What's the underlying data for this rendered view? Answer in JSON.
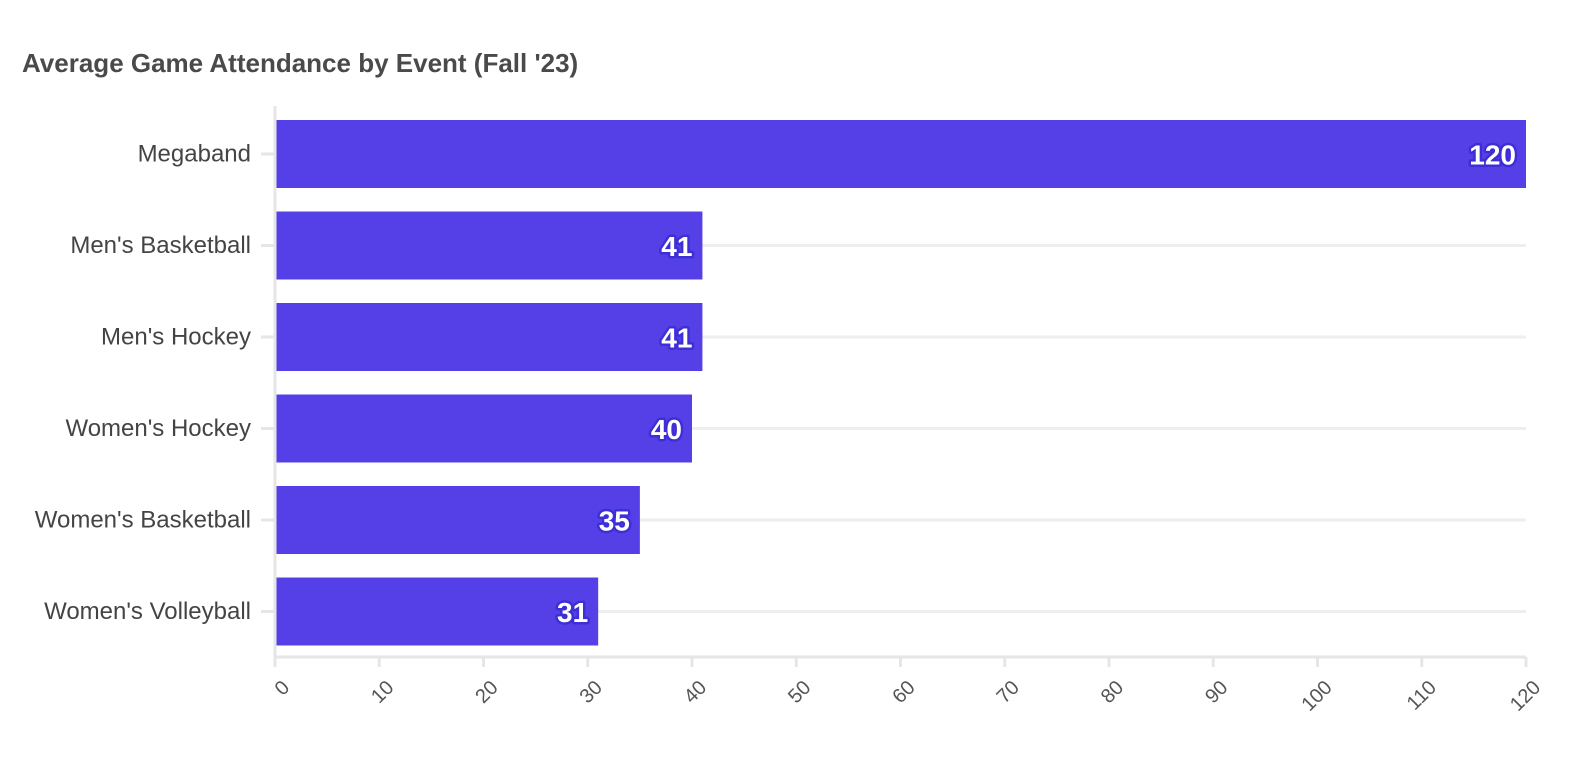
{
  "chart_data": {
    "type": "bar",
    "orientation": "horizontal",
    "title": "Average Game Attendance by Event (Fall '23)",
    "xlabel": "",
    "ylabel": "",
    "categories": [
      "Megaband",
      "Men's Basketball",
      "Men's Hockey",
      "Women's Hockey",
      "Women's Basketball",
      "Women's Volleyball"
    ],
    "values": [
      120,
      41,
      41,
      40,
      35,
      31
    ],
    "xlim": [
      0,
      120
    ],
    "ticks": [
      0,
      10,
      20,
      30,
      40,
      50,
      60,
      70,
      80,
      90,
      100,
      110,
      120
    ],
    "tick_labels": [
      "0",
      "10",
      "20",
      "30",
      "40",
      "50",
      "60",
      "70",
      "80",
      "90",
      "100",
      "110",
      "120"
    ],
    "data_labels": [
      "120",
      "41",
      "41",
      "40",
      "35",
      "31"
    ],
    "grid": true,
    "legend": "none",
    "colors": {
      "bar": "#5540e8",
      "label_outline": "#3d2ed6",
      "grid": "#eeeeee",
      "axis": "#e6e6e6"
    }
  }
}
